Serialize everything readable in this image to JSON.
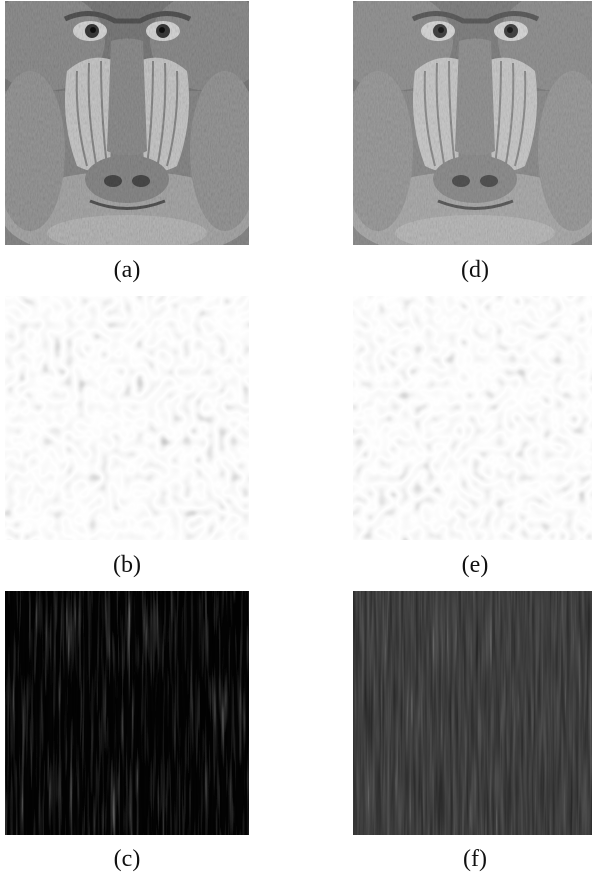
{
  "figure": {
    "panels": [
      {
        "id": "a",
        "caption": "(a)",
        "content": "baboon-face-original"
      },
      {
        "id": "d",
        "caption": "(d)",
        "content": "baboon-face-reconstructed"
      },
      {
        "id": "b",
        "caption": "(b)",
        "content": "blob-texture"
      },
      {
        "id": "e",
        "caption": "(e)",
        "content": "blob-texture"
      },
      {
        "id": "c",
        "caption": "(c)",
        "content": "vertical-streak-noise"
      },
      {
        "id": "f",
        "caption": "(f)",
        "content": "vertical-streak-noise"
      }
    ]
  },
  "colors": {
    "background": "#ffffff",
    "caption_text": "#111111",
    "streak_bg_c": "#050505",
    "streak_bg_f": "#1c1c1c"
  }
}
